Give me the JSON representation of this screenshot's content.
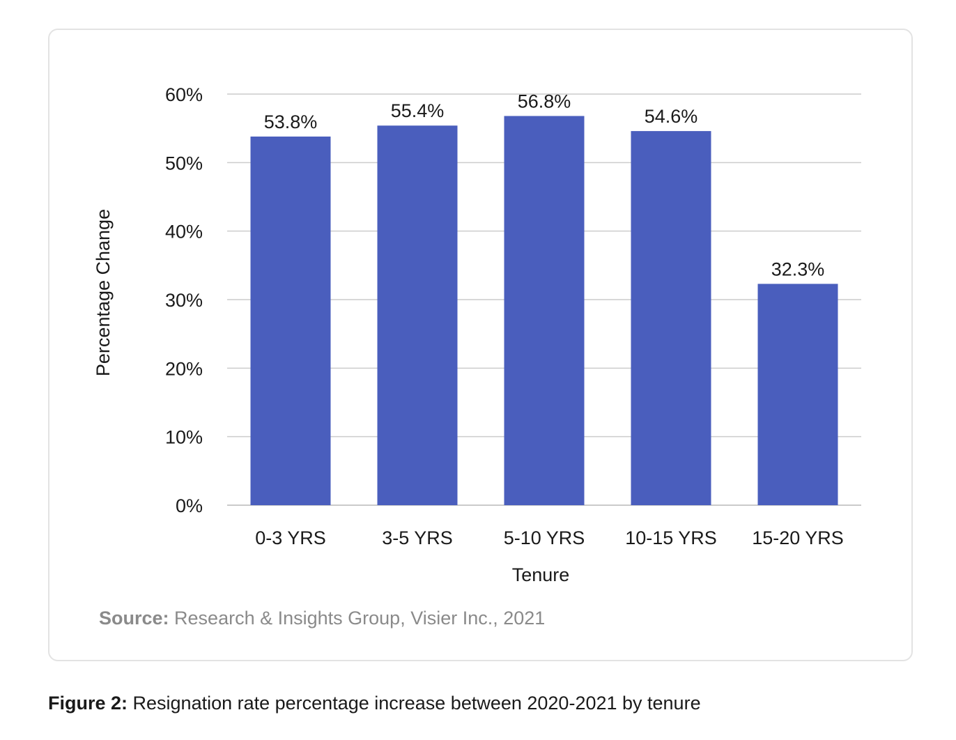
{
  "chart_data": {
    "type": "bar",
    "categories": [
      "0-3 YRS",
      "3-5 YRS",
      "5-10 YRS",
      "10-15 YRS",
      "15-20 YRS"
    ],
    "values": [
      53.8,
      55.4,
      56.8,
      54.6,
      32.3
    ],
    "data_labels": [
      "53.8%",
      "55.4%",
      "56.8%",
      "54.6%",
      "32.3%"
    ],
    "xlabel": "Tenure",
    "ylabel": "Percentage Change",
    "ylim": [
      0,
      60
    ],
    "yticks": [
      0,
      10,
      20,
      30,
      40,
      50,
      60
    ],
    "ytick_labels": [
      "0%",
      "10%",
      "20%",
      "30%",
      "40%",
      "50%",
      "60%"
    ],
    "grid": true,
    "bar_color": "#4a5ebd",
    "grid_color": "#cccccc"
  },
  "source": {
    "label": "Source:",
    "text": " Research & Insights Group, Visier Inc., 2021"
  },
  "caption": {
    "label": "Figure 2:",
    "text": " Resignation rate percentage increase between 2020-2021 by tenure"
  }
}
